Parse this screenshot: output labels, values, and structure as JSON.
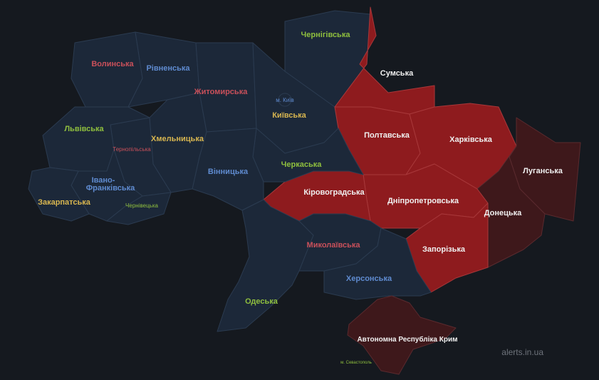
{
  "colors": {
    "background": "#15191f",
    "no_alert": "#1c2839",
    "alert": "#8e1b1e",
    "alert_occupied": "#3e181b"
  },
  "regions": [
    {
      "name": "Волинська",
      "status": "no_alert"
    },
    {
      "name": "Рівненська",
      "status": "no_alert"
    },
    {
      "name": "Житомирська",
      "status": "no_alert"
    },
    {
      "name": "Київська",
      "status": "no_alert"
    },
    {
      "name": "м. Київ",
      "status": "no_alert"
    },
    {
      "name": "Чернігівська",
      "status": "no_alert"
    },
    {
      "name": "Сумська",
      "status": "alert"
    },
    {
      "name": "Полтавська",
      "status": "alert"
    },
    {
      "name": "Харківська",
      "status": "alert"
    },
    {
      "name": "Луганська",
      "status": "alert_occupied"
    },
    {
      "name": "Донецька",
      "status": "alert_occupied"
    },
    {
      "name": "Дніпропетровська",
      "status": "alert"
    },
    {
      "name": "Запорізька",
      "status": "alert"
    },
    {
      "name": "Кіровоградська",
      "status": "alert"
    },
    {
      "name": "Черкаська",
      "status": "no_alert"
    },
    {
      "name": "Вінницька",
      "status": "no_alert"
    },
    {
      "name": "Хмельницька",
      "status": "no_alert"
    },
    {
      "name": "Тернопільська",
      "status": "no_alert"
    },
    {
      "name": "Львівська",
      "status": "no_alert"
    },
    {
      "name": "Івано-",
      "status": "no_alert",
      "name2": "Франківська"
    },
    {
      "name": "Чернівецька",
      "status": "no_alert"
    },
    {
      "name": "Закарпатська",
      "status": "no_alert"
    },
    {
      "name": "Одеська",
      "status": "no_alert"
    },
    {
      "name": "Миколаївська",
      "status": "no_alert"
    },
    {
      "name": "Херсонська",
      "status": "no_alert"
    },
    {
      "name": "Автономна Республіка Крим",
      "status": "alert_occupied"
    },
    {
      "name": "м. Севастополь",
      "status": "alert_occupied"
    }
  ],
  "brand": "alerts.in.ua"
}
